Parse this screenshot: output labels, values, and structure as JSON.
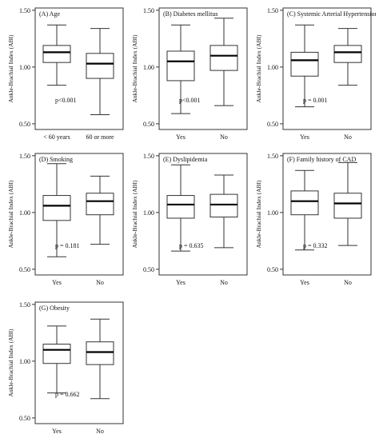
{
  "figure": {
    "ylabel": "Ankle-Brachial Index (ABI)",
    "yticks": [
      "0.50",
      "1.00",
      "1.50"
    ],
    "ylim": [
      0.45,
      1.52
    ]
  },
  "chart_data": [
    {
      "type": "box",
      "title": "(A) Age",
      "ylabel": "Ankle-Brachial Index (ABI)",
      "ylim": [
        0.45,
        1.52
      ],
      "categories": [
        "< 60 years",
        "60 or more"
      ],
      "boxes": [
        {
          "min": 0.84,
          "q1": 1.04,
          "median": 1.13,
          "q3": 1.19,
          "max": 1.37
        },
        {
          "min": 0.58,
          "q1": 0.9,
          "median": 1.03,
          "q3": 1.12,
          "max": 1.34
        }
      ],
      "annotation": "p<0.001"
    },
    {
      "type": "box",
      "title": "(B) Diabetes mellitus",
      "ylabel": "Ankle-Brachial Index (ABI)",
      "ylim": [
        0.45,
        1.52
      ],
      "categories": [
        "Yes",
        "No"
      ],
      "boxes": [
        {
          "min": 0.59,
          "q1": 0.88,
          "median": 1.05,
          "q3": 1.14,
          "max": 1.37
        },
        {
          "min": 0.66,
          "q1": 0.97,
          "median": 1.1,
          "q3": 1.19,
          "max": 1.43
        }
      ],
      "annotation": "p<0.001"
    },
    {
      "type": "box",
      "title": "(C) Systemic Arterial Hypertension",
      "ylabel": "Ankle-Brachial Index (ABI)",
      "ylim": [
        0.45,
        1.52
      ],
      "categories": [
        "Yes",
        "No"
      ],
      "boxes": [
        {
          "min": 0.65,
          "q1": 0.92,
          "median": 1.06,
          "q3": 1.13,
          "max": 1.37
        },
        {
          "min": 0.84,
          "q1": 1.04,
          "median": 1.13,
          "q3": 1.19,
          "max": 1.34
        }
      ],
      "annotation": "p = 0.001"
    },
    {
      "type": "box",
      "title": "(D) Smoking",
      "ylabel": "Ankle-Brachial Index (ABI)",
      "ylim": [
        0.45,
        1.52
      ],
      "categories": [
        "Yes",
        "No"
      ],
      "boxes": [
        {
          "min": 0.61,
          "q1": 0.93,
          "median": 1.06,
          "q3": 1.15,
          "max": 1.43
        },
        {
          "min": 0.72,
          "q1": 0.98,
          "median": 1.1,
          "q3": 1.17,
          "max": 1.32
        }
      ],
      "annotation": "p = 0.181"
    },
    {
      "type": "box",
      "title": "(E) Dyslipidemia",
      "ylabel": "Ankle-Brachial Index (ABI)",
      "ylim": [
        0.45,
        1.52
      ],
      "categories": [
        "Yes",
        "No"
      ],
      "boxes": [
        {
          "min": 0.66,
          "q1": 0.95,
          "median": 1.07,
          "q3": 1.15,
          "max": 1.42
        },
        {
          "min": 0.69,
          "q1": 0.96,
          "median": 1.07,
          "q3": 1.16,
          "max": 1.33
        }
      ],
      "annotation": "p = 0.635"
    },
    {
      "type": "box",
      "title": "(F) Family history of CAD",
      "ylabel": "Ankle-Brachial Index (ABI)",
      "ylim": [
        0.45,
        1.52
      ],
      "categories": [
        "Yes",
        "No"
      ],
      "boxes": [
        {
          "min": 0.67,
          "q1": 0.98,
          "median": 1.1,
          "q3": 1.19,
          "max": 1.37
        },
        {
          "min": 0.71,
          "q1": 0.95,
          "median": 1.08,
          "q3": 1.17,
          "max": 1.44
        }
      ],
      "annotation": "p = 0.332"
    },
    {
      "type": "box",
      "title": "(G) Obesity",
      "ylabel": "Ankle-Brachial Index (ABI)",
      "ylim": [
        0.45,
        1.52
      ],
      "categories": [
        "Yes",
        "No"
      ],
      "boxes": [
        {
          "min": 0.72,
          "q1": 0.98,
          "median": 1.1,
          "q3": 1.15,
          "max": 1.31
        },
        {
          "min": 0.67,
          "q1": 0.97,
          "median": 1.08,
          "q3": 1.17,
          "max": 1.37
        }
      ],
      "annotation": "p = 0.662"
    }
  ]
}
